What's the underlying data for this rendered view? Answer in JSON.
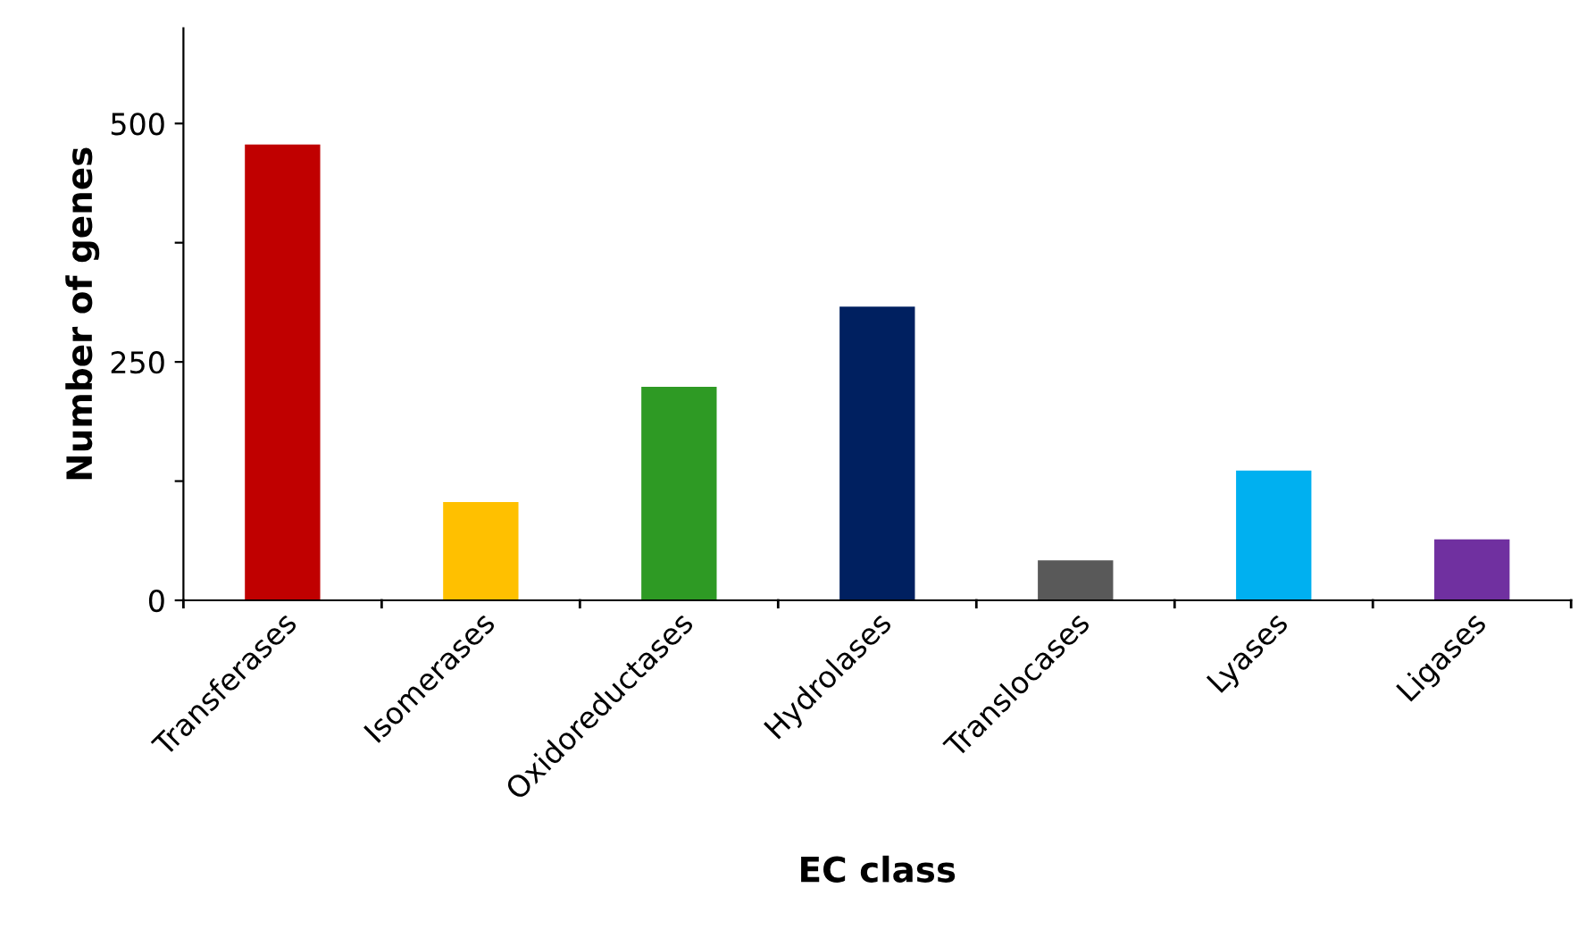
{
  "chart_data": {
    "type": "bar",
    "xlabel": "EC class",
    "ylabel": "Number of genes",
    "categories": [
      "Transferases",
      "Isomerases",
      "Oxidoreductases",
      "Hydrolases",
      "Translocases",
      "Lyases",
      "Ligases"
    ],
    "values": [
      478,
      103,
      224,
      308,
      42,
      136,
      64
    ],
    "colors": [
      "#c00000",
      "#ffc000",
      "#2e9a24",
      "#002060",
      "#595959",
      "#00b0f0",
      "#7030a0"
    ],
    "ylim": [
      0,
      600
    ],
    "yticks": [
      0,
      {
        "value": 125,
        "label": null
      },
      250,
      {
        "value": 375,
        "label": null
      },
      500
    ],
    "grid": false,
    "legend": false
  }
}
